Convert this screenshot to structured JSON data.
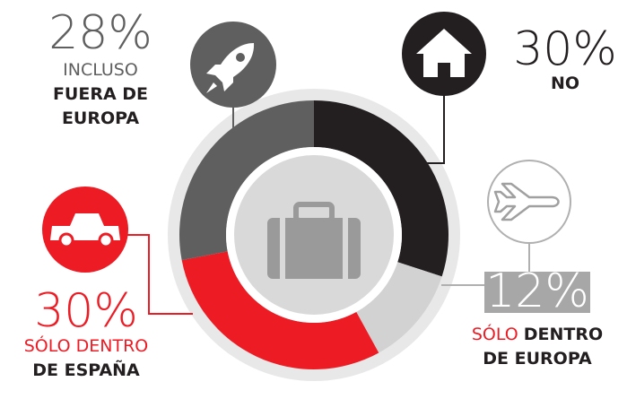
{
  "chart_data": {
    "type": "donut",
    "values": [
      30,
      12,
      30,
      28
    ],
    "value_labels": [
      "30%",
      "12%",
      "30%",
      "28%"
    ],
    "colors": [
      "#231f20",
      "#d2d2d2",
      "#ed1c24",
      "#5f5f5f"
    ],
    "label_lines": [
      [
        [
          {
            "text": "NO",
            "bold": true
          }
        ]
      ],
      [
        [
          {
            "text": "SÓLO ",
            "bold": false
          },
          {
            "text": "DENTRO",
            "bold": true
          }
        ],
        [
          {
            "text": "DE EUROPA",
            "bold": true
          }
        ]
      ],
      [
        [
          {
            "text": "SÓLO DENTRO",
            "bold": false
          }
        ],
        [
          {
            "text": "DE ESPAÑA",
            "bold": true
          }
        ]
      ],
      [
        [
          {
            "text": "INCLUSO",
            "bold": false
          }
        ],
        [
          {
            "text": "FUERA DE",
            "bold": true
          }
        ],
        [
          {
            "text": "EUROPA",
            "bold": true
          }
        ]
      ]
    ]
  }
}
